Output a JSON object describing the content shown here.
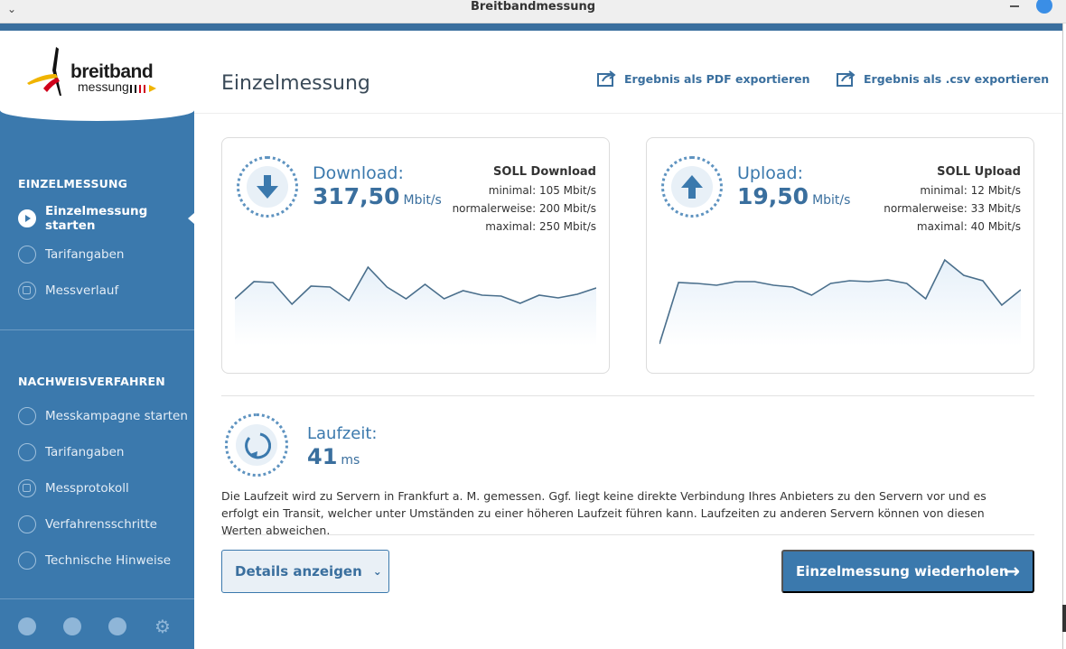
{
  "window": {
    "title": "Breitbandmessung"
  },
  "sidebar": {
    "logo": {
      "word1": "breitband",
      "word2": "messung"
    },
    "section1": "EINZELMESSUNG",
    "items1": [
      {
        "label": "Einzelmessung starten",
        "icon": "play-icon"
      },
      {
        "label": "Tarifangaben",
        "icon": "user-card-icon"
      },
      {
        "label": "Messverlauf",
        "icon": "calendar-icon"
      }
    ],
    "section2": "NACHWEISVERFAHREN",
    "items2": [
      {
        "label": "Messkampagne starten",
        "icon": "play-icon"
      },
      {
        "label": "Tarifangaben",
        "icon": "user-card-icon"
      },
      {
        "label": "Messprotokoll",
        "icon": "calendar-icon"
      },
      {
        "label": "Verfahrensschritte",
        "icon": "list-icon"
      },
      {
        "label": "Technische Hinweise",
        "icon": "warning-icon"
      }
    ],
    "bottom_icons": [
      "home-icon",
      "chat-icon",
      "info-icon",
      "gear-icon"
    ]
  },
  "main": {
    "title": "Einzelmessung",
    "export_pdf": "Ergebnis als PDF exportieren",
    "export_csv": "Ergebnis als .csv exportieren",
    "download": {
      "label": "Download:",
      "value": "317,50",
      "unit": "Mbit/s",
      "soll_title": "SOLL Download",
      "soll_min": "minimal: 105 Mbit/s",
      "soll_normal": "normalerweise: 200 Mbit/s",
      "soll_max": "maximal: 250 Mbit/s",
      "series": [
        52,
        71,
        70,
        46,
        66,
        65,
        50,
        87,
        65,
        52,
        68,
        52,
        61,
        56,
        55,
        47,
        56,
        53,
        57,
        64
      ]
    },
    "upload": {
      "label": "Upload:",
      "value": "19,50",
      "unit": "Mbit/s",
      "soll_title": "SOLL Upload",
      "soll_min": "minimal: 12 Mbit/s",
      "soll_normal": "normalerweise: 33 Mbit/s",
      "soll_max": "maximal: 40 Mbit/s",
      "series": [
        2,
        70,
        69,
        67,
        71,
        71,
        67,
        65,
        56,
        69,
        72,
        71,
        73,
        69,
        52,
        95,
        78,
        72,
        45,
        62
      ]
    },
    "latency": {
      "label": "Laufzeit:",
      "value": "41",
      "unit": "ms",
      "description": "Die Laufzeit wird zu Servern in Frankfurt a. M. gemessen. Ggf. liegt keine direkte Verbindung Ihres Anbieters zu den Servern vor und es erfolgt ein Transit, welcher unter Umständen zu einer höheren Laufzeit führen kann. Laufzeiten zu anderen Servern können von diesen Werten abweichen."
    },
    "btn_details": "Details anzeigen",
    "btn_repeat": "Einzelmessung wiederholen"
  },
  "colors": {
    "accent": "#3b79ad",
    "dark_accent": "#3a6f9e",
    "sparkline": "#4a6f8c",
    "fill": "#e6f0f9"
  }
}
